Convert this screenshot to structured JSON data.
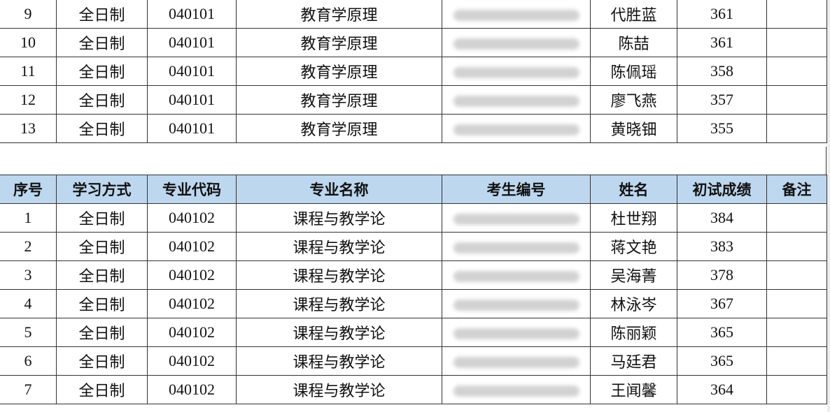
{
  "headers": [
    "序号",
    "学习方式",
    "专业代码",
    "专业名称",
    "考生编号",
    "姓名",
    "初试成绩",
    "备注"
  ],
  "table1_rows": [
    {
      "no": "9",
      "mode": "全日制",
      "code": "040101",
      "major": "教育学原理",
      "name": "代胜蓝",
      "score": "361",
      "note": ""
    },
    {
      "no": "10",
      "mode": "全日制",
      "code": "040101",
      "major": "教育学原理",
      "name": "陈喆",
      "score": "361",
      "note": ""
    },
    {
      "no": "11",
      "mode": "全日制",
      "code": "040101",
      "major": "教育学原理",
      "name": "陈佩瑶",
      "score": "358",
      "note": ""
    },
    {
      "no": "12",
      "mode": "全日制",
      "code": "040101",
      "major": "教育学原理",
      "name": "廖飞燕",
      "score": "357",
      "note": ""
    },
    {
      "no": "13",
      "mode": "全日制",
      "code": "040101",
      "major": "教育学原理",
      "name": "黄晓钿",
      "score": "355",
      "note": ""
    }
  ],
  "table2_rows": [
    {
      "no": "1",
      "mode": "全日制",
      "code": "040102",
      "major": "课程与教学论",
      "name": "杜世翔",
      "score": "384",
      "note": ""
    },
    {
      "no": "2",
      "mode": "全日制",
      "code": "040102",
      "major": "课程与教学论",
      "name": "蒋文艳",
      "score": "383",
      "note": ""
    },
    {
      "no": "3",
      "mode": "全日制",
      "code": "040102",
      "major": "课程与教学论",
      "name": "吴海菁",
      "score": "378",
      "note": ""
    },
    {
      "no": "4",
      "mode": "全日制",
      "code": "040102",
      "major": "课程与教学论",
      "name": "林泳岑",
      "score": "367",
      "note": ""
    },
    {
      "no": "5",
      "mode": "全日制",
      "code": "040102",
      "major": "课程与教学论",
      "name": "陈丽颖",
      "score": "365",
      "note": ""
    },
    {
      "no": "6",
      "mode": "全日制",
      "code": "040102",
      "major": "课程与教学论",
      "name": "马廷君",
      "score": "365",
      "note": ""
    },
    {
      "no": "7",
      "mode": "全日制",
      "code": "040102",
      "major": "课程与教学论",
      "name": "王闻馨",
      "score": "364",
      "note": ""
    }
  ],
  "colors": {
    "header_bg": "#bdd7ee",
    "border": "#333333"
  }
}
